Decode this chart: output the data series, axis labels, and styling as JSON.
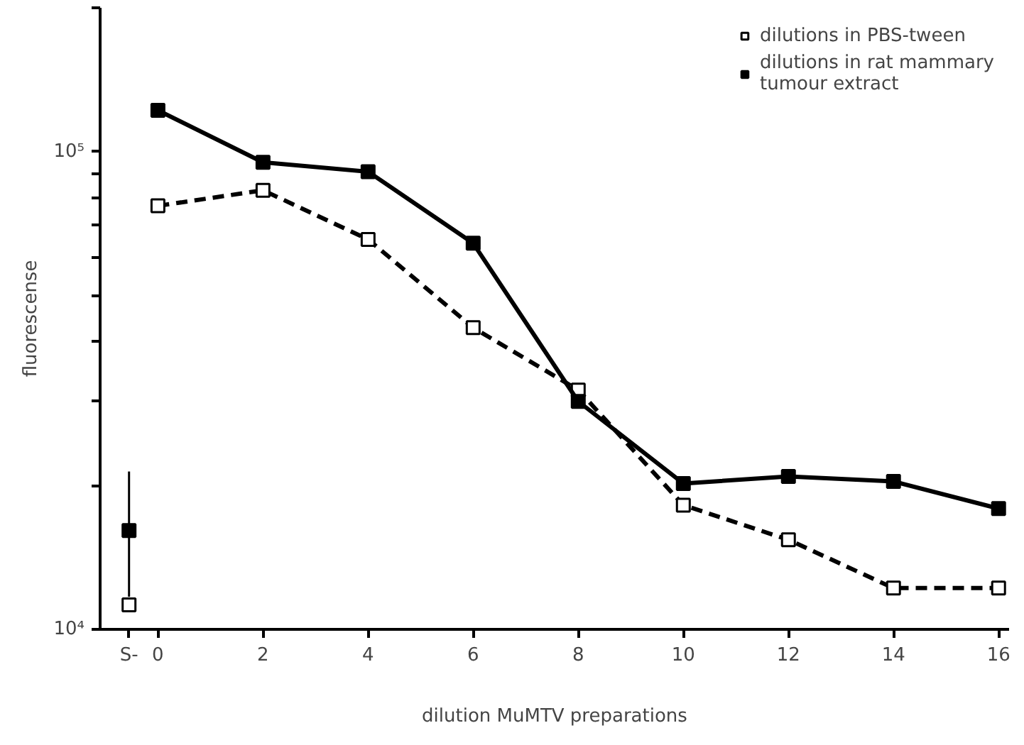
{
  "chart_data": {
    "type": "line",
    "xlabel": "dilution MuMTV preparations",
    "ylabel": "fluorescense",
    "log": "y",
    "xlim": [
      -1.1,
      16.2
    ],
    "ylim": [
      10000,
      200000
    ],
    "xticks": [
      {
        "value": -0.55,
        "label": "S-"
      },
      0,
      2,
      4,
      6,
      8,
      10,
      12,
      14,
      16
    ],
    "yticks": [
      {
        "value": 10000,
        "label": "10⁴"
      },
      {
        "value": 20000,
        "label": null
      },
      {
        "value": 30000,
        "label": null
      },
      {
        "value": 40000,
        "label": null
      },
      {
        "value": 50000,
        "label": null
      },
      {
        "value": 60000,
        "label": null
      },
      {
        "value": 70000,
        "label": null
      },
      {
        "value": 80000,
        "label": null
      },
      {
        "value": 90000,
        "label": null
      },
      {
        "value": 100000,
        "label": "10⁵"
      },
      {
        "value": 200000,
        "label": null
      }
    ],
    "grid": false,
    "legend": "top right",
    "marker": "square",
    "series": [
      {
        "name": "dilutions in PBS-tween",
        "color": "#000000",
        "line_style": "dashed",
        "x": [
          0,
          2,
          4,
          6,
          8,
          10,
          12,
          14,
          16
        ],
        "values": [
          77000,
          83000,
          65500,
          42800,
          31700,
          18200,
          15400,
          12200,
          12200
        ]
      },
      {
        "name": "dilutions in rat mammary tumour extract",
        "color": "#000000",
        "line_style": "solid",
        "x": [
          0,
          2,
          4,
          6,
          8,
          10,
          12,
          14,
          16
        ],
        "values": [
          122000,
          95000,
          90800,
          64300,
          30000,
          20200,
          20900,
          20400,
          17900
        ]
      },
      {
        "type": "scatter",
        "color": "#000000",
        "line_style": "dashed",
        "x": [
          -0.55
        ],
        "values": [
          11250
        ]
      },
      {
        "type": "scatter",
        "color": "#000000",
        "line_style": "solid",
        "x": [
          -0.55
        ],
        "values": [
          16100
        ],
        "errors": [
          [
            11700,
            21400
          ]
        ]
      }
    ]
  }
}
